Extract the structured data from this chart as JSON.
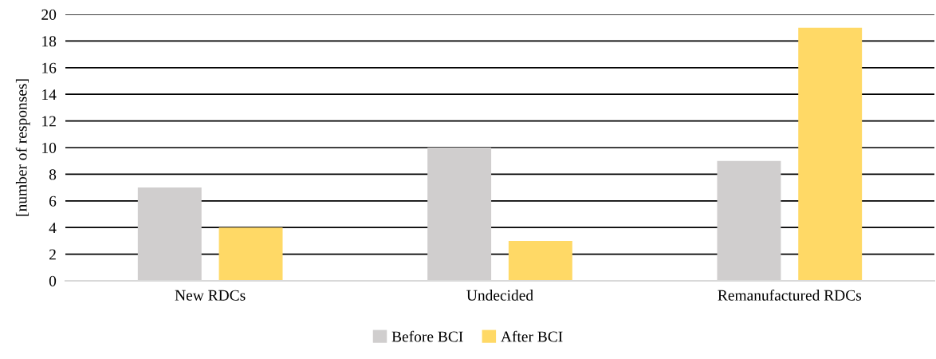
{
  "chart_data": {
    "type": "bar",
    "ylabel": "[number of responses]",
    "categories": [
      "New RDCs",
      "Undecided",
      "Remanufactured RDCs"
    ],
    "series": [
      {
        "name": "Before BCI",
        "color": "#d0cece",
        "values": [
          7,
          10,
          9
        ]
      },
      {
        "name": "After BCI",
        "color": "#ffd966",
        "values": [
          4,
          3,
          19
        ]
      }
    ],
    "ylim": [
      0,
      20
    ],
    "yticks": [
      0,
      2,
      4,
      6,
      8,
      10,
      12,
      14,
      16,
      18,
      20
    ],
    "grid": "y",
    "legend": "bottom"
  }
}
